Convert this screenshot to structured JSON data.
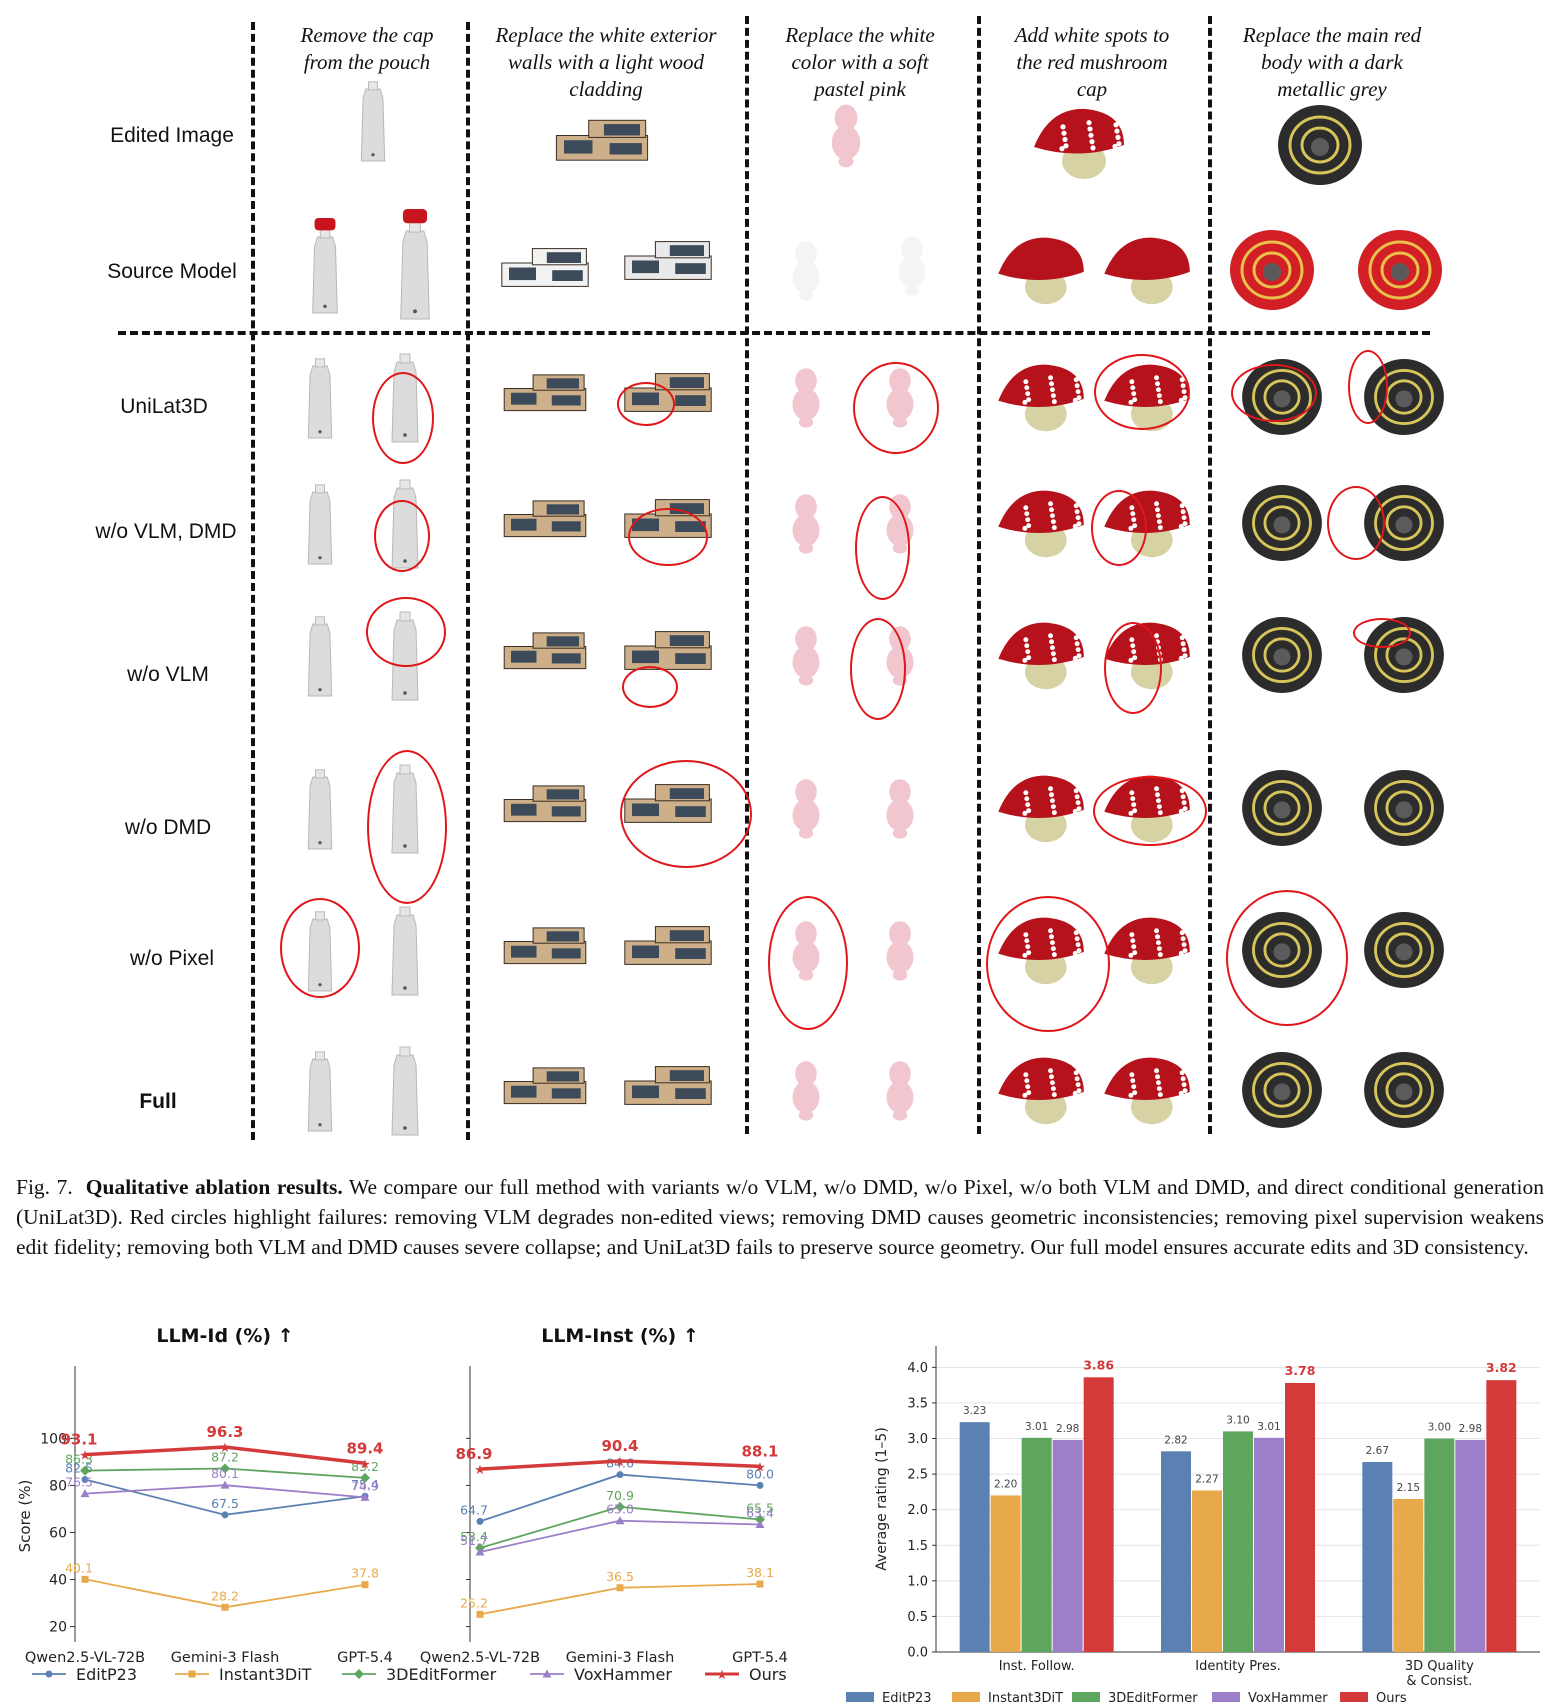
{
  "top_captions": [
    [
      "Remove the cap",
      "from the pouch"
    ],
    [
      "Replace the white exterior",
      "walls with a light wood",
      "cladding"
    ],
    [
      "Replace the white",
      "color with a soft",
      "pastel pink"
    ],
    [
      "Add white spots to",
      "the red mushroom",
      "cap"
    ],
    [
      "Replace the main red",
      "body with a dark",
      "metallic grey"
    ]
  ],
  "row_labels": [
    "Edited Image",
    "Source Model",
    "UniLat3D",
    "w/o VLM, DMD",
    "w/o VLM",
    "w/o DMD",
    "w/o Pixel",
    "Full"
  ],
  "figure_caption": {
    "label": "Fig. 7.",
    "title": "Qualitative ablation results.",
    "text": "We compare our full method with variants w/o VLM, w/o DMD, w/o Pixel, w/o both VLM and DMD, and direct conditional generation (UniLat3D). Red circles highlight failures: removing VLM degrades non-edited views; removing DMD causes geometric inconsistencies; removing pixel supervision weakens edit fidelity; removing both VLM and DMD causes severe collapse; and UniLat3D fails to preserve source geometry. Our full model ensures accurate edits and 3D consistency."
  },
  "colors": {
    "EditP23": "#5b80b2",
    "Instant3DiT": "#e8a94a",
    "3DEditFormer": "#5ea65e",
    "VoxHammer": "#9b7fc8",
    "Ours": "#d43a3a",
    "fail_circle": "#e0161b"
  },
  "chart_data": [
    {
      "type": "line",
      "title": "LLM-Id (%) ↑",
      "ylabel": "Score (%)",
      "categories": [
        "Qwen2.5-VL-72B",
        "Gemini-3 Flash",
        "GPT-5.4"
      ],
      "ylim": [
        16,
        118
      ],
      "yticks": [
        20,
        40,
        60,
        80,
        100
      ],
      "series": [
        {
          "name": "EditP23",
          "values": [
            82.5,
            67.5,
            75.4
          ],
          "marker": "circle"
        },
        {
          "name": "Instant3DiT",
          "values": [
            40.1,
            28.2,
            37.8
          ],
          "marker": "square"
        },
        {
          "name": "3DEditFormer",
          "values": [
            86.3,
            87.2,
            83.2
          ],
          "marker": "diamond"
        },
        {
          "name": "VoxHammer",
          "values": [
            76.5,
            80.1,
            74.9
          ],
          "marker": "triangle"
        },
        {
          "name": "Ours",
          "values": [
            93.1,
            96.3,
            89.4
          ],
          "marker": "star"
        }
      ]
    },
    {
      "type": "line",
      "title": "LLM-Inst (%) ↑",
      "categories": [
        "Qwen2.5-VL-72B",
        "Gemini-3 Flash",
        "GPT-5.4"
      ],
      "ylim": [
        16,
        118
      ],
      "series": [
        {
          "name": "EditP23",
          "values": [
            64.7,
            84.6,
            80.0
          ],
          "marker": "circle"
        },
        {
          "name": "Instant3DiT",
          "values": [
            25.2,
            36.5,
            38.1
          ],
          "marker": "square"
        },
        {
          "name": "3DEditFormer",
          "values": [
            53.4,
            70.9,
            65.5
          ],
          "marker": "diamond"
        },
        {
          "name": "VoxHammer",
          "values": [
            51.7,
            65.0,
            63.4
          ],
          "marker": "triangle"
        },
        {
          "name": "Ours",
          "values": [
            86.9,
            90.4,
            88.1
          ],
          "marker": "star"
        }
      ]
    },
    {
      "type": "bar",
      "ylabel": "Average rating (1–5)",
      "categories": [
        "Inst. Follow.",
        "Identity Pres.",
        "3D Quality\n& Consist."
      ],
      "ylim": [
        0,
        4.3
      ],
      "yticks": [
        0.0,
        0.5,
        1.0,
        1.5,
        2.0,
        2.5,
        3.0,
        3.5,
        4.0
      ],
      "series": [
        {
          "name": "EditP23",
          "values": [
            3.23,
            2.82,
            2.67
          ]
        },
        {
          "name": "Instant3DiT",
          "values": [
            2.2,
            2.27,
            2.15
          ]
        },
        {
          "name": "3DEditFormer",
          "values": [
            3.01,
            3.1,
            3.0
          ]
        },
        {
          "name": "VoxHammer",
          "values": [
            2.98,
            3.01,
            2.98
          ]
        },
        {
          "name": "Ours",
          "values": [
            3.86,
            3.78,
            3.82
          ]
        }
      ]
    }
  ]
}
